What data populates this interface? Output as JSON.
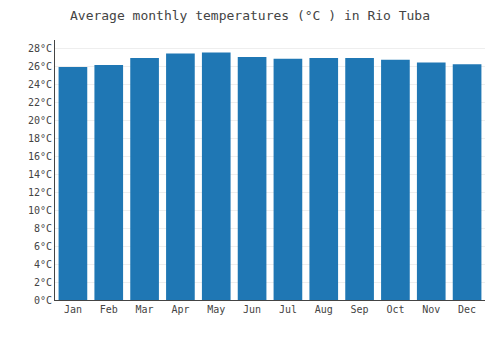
{
  "chart_data": {
    "type": "bar",
    "title": "Average monthly temperatures (°C ) in Rio Tuba",
    "categories": [
      "Jan",
      "Feb",
      "Mar",
      "Apr",
      "May",
      "Jun",
      "Jul",
      "Aug",
      "Sep",
      "Oct",
      "Nov",
      "Dec"
    ],
    "values": [
      26.0,
      26.2,
      27.0,
      27.5,
      27.6,
      27.1,
      26.9,
      27.0,
      27.0,
      26.8,
      26.5,
      26.3
    ],
    "ylim": [
      0,
      29
    ],
    "yticks": [
      {
        "value": 0,
        "label": "0°C"
      },
      {
        "value": 2,
        "label": "2°C"
      },
      {
        "value": 4,
        "label": "4°C"
      },
      {
        "value": 6,
        "label": "6°C"
      },
      {
        "value": 8,
        "label": "8°C"
      },
      {
        "value": 10,
        "label": "10°C"
      },
      {
        "value": 12,
        "label": "12°C"
      },
      {
        "value": 14,
        "label": "14°C"
      },
      {
        "value": 16,
        "label": "16°C"
      },
      {
        "value": 18,
        "label": "18°C"
      },
      {
        "value": 20,
        "label": "20°C"
      },
      {
        "value": 22,
        "label": "22°C"
      },
      {
        "value": 24,
        "label": "24°C"
      },
      {
        "value": 26,
        "label": "26°C"
      },
      {
        "value": 28,
        "label": "28°C"
      }
    ],
    "grid": true
  }
}
